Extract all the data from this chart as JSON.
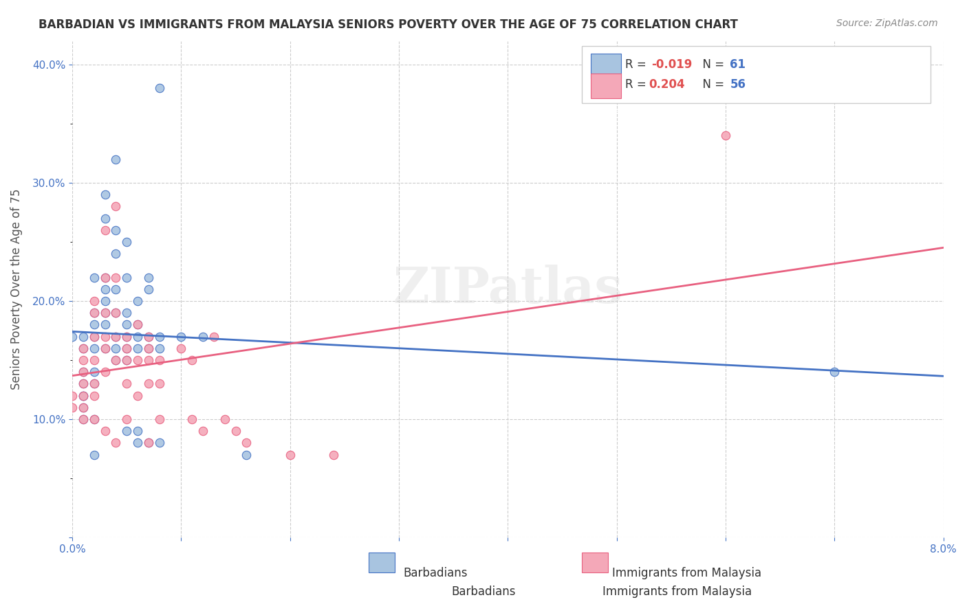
{
  "title": "BARBADIAN VS IMMIGRANTS FROM MALAYSIA SENIORS POVERTY OVER THE AGE OF 75 CORRELATION CHART",
  "source": "Source: ZipAtlas.com",
  "xlabel_barbadians": "Barbadians",
  "xlabel_malaysia": "Immigrants from Malaysia",
  "ylabel": "Seniors Poverty Over the Age of 75",
  "x_min": 0.0,
  "x_max": 0.08,
  "y_min": 0.0,
  "y_max": 0.42,
  "x_ticks": [
    0.0,
    0.01,
    0.02,
    0.03,
    0.04,
    0.05,
    0.06,
    0.07,
    0.08
  ],
  "x_tick_labels": [
    "0.0%",
    "",
    "",
    "",
    "",
    "",
    "",
    "",
    "8.0%"
  ],
  "y_ticks": [
    0.0,
    0.1,
    0.2,
    0.3,
    0.4
  ],
  "y_tick_labels": [
    "",
    "10.0%",
    "20.0%",
    "30.0%",
    "40.0%"
  ],
  "legend_r1": "R = -0.019",
  "legend_n1": "N =  61",
  "legend_r2": "R =  0.204",
  "legend_n2": "N =  56",
  "color_blue": "#a8c4e0",
  "color_pink": "#f4a8b8",
  "line_color_blue": "#4472c4",
  "line_color_pink": "#e86080",
  "watermark": "ZIPatlas",
  "barbadians_x": [
    0.0,
    0.001,
    0.001,
    0.001,
    0.001,
    0.001,
    0.001,
    0.001,
    0.001,
    0.002,
    0.002,
    0.002,
    0.002,
    0.002,
    0.002,
    0.002,
    0.002,
    0.002,
    0.003,
    0.003,
    0.003,
    0.003,
    0.003,
    0.003,
    0.003,
    0.003,
    0.004,
    0.004,
    0.004,
    0.004,
    0.004,
    0.004,
    0.004,
    0.004,
    0.005,
    0.005,
    0.005,
    0.005,
    0.005,
    0.005,
    0.005,
    0.005,
    0.006,
    0.006,
    0.006,
    0.006,
    0.006,
    0.006,
    0.007,
    0.007,
    0.007,
    0.007,
    0.007,
    0.008,
    0.008,
    0.008,
    0.008,
    0.01,
    0.012,
    0.016,
    0.07
  ],
  "barbadians_y": [
    0.17,
    0.16,
    0.14,
    0.13,
    0.12,
    0.12,
    0.11,
    0.1,
    0.17,
    0.22,
    0.19,
    0.18,
    0.17,
    0.16,
    0.14,
    0.13,
    0.1,
    0.07,
    0.29,
    0.27,
    0.22,
    0.21,
    0.2,
    0.19,
    0.18,
    0.16,
    0.32,
    0.26,
    0.24,
    0.21,
    0.19,
    0.17,
    0.16,
    0.15,
    0.25,
    0.22,
    0.19,
    0.18,
    0.17,
    0.16,
    0.15,
    0.09,
    0.2,
    0.18,
    0.17,
    0.16,
    0.09,
    0.08,
    0.22,
    0.21,
    0.17,
    0.16,
    0.08,
    0.38,
    0.17,
    0.16,
    0.08,
    0.17,
    0.17,
    0.07,
    0.14
  ],
  "malaysia_x": [
    0.0,
    0.0,
    0.001,
    0.001,
    0.001,
    0.001,
    0.001,
    0.001,
    0.001,
    0.002,
    0.002,
    0.002,
    0.002,
    0.002,
    0.002,
    0.002,
    0.003,
    0.003,
    0.003,
    0.003,
    0.003,
    0.003,
    0.003,
    0.004,
    0.004,
    0.004,
    0.004,
    0.004,
    0.004,
    0.005,
    0.005,
    0.005,
    0.005,
    0.005,
    0.006,
    0.006,
    0.006,
    0.007,
    0.007,
    0.007,
    0.007,
    0.007,
    0.008,
    0.008,
    0.008,
    0.01,
    0.011,
    0.011,
    0.012,
    0.013,
    0.014,
    0.015,
    0.016,
    0.02,
    0.024,
    0.06
  ],
  "malaysia_y": [
    0.12,
    0.11,
    0.16,
    0.15,
    0.14,
    0.13,
    0.12,
    0.11,
    0.1,
    0.2,
    0.19,
    0.17,
    0.15,
    0.13,
    0.12,
    0.1,
    0.26,
    0.22,
    0.19,
    0.17,
    0.16,
    0.14,
    0.09,
    0.28,
    0.22,
    0.19,
    0.17,
    0.15,
    0.08,
    0.17,
    0.16,
    0.15,
    0.13,
    0.1,
    0.18,
    0.15,
    0.12,
    0.17,
    0.16,
    0.15,
    0.13,
    0.08,
    0.15,
    0.13,
    0.1,
    0.16,
    0.15,
    0.1,
    0.09,
    0.17,
    0.1,
    0.09,
    0.08,
    0.07,
    0.07,
    0.34
  ]
}
